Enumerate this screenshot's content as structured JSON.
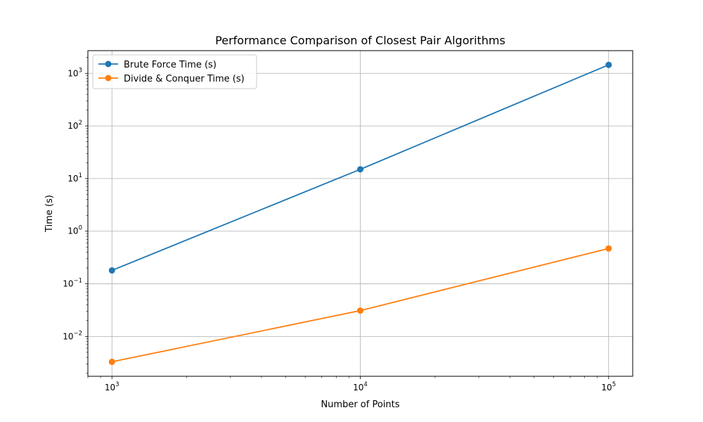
{
  "chart_data": {
    "type": "line",
    "title": "Performance Comparison of Closest Pair Algorithms",
    "xlabel": "Number of Points",
    "ylabel": "Time (s)",
    "x_scale": "log",
    "y_scale": "log",
    "xlim": [
      800,
      125000
    ],
    "ylim": [
      0.00175,
      2700
    ],
    "x": [
      1000,
      10000,
      100000
    ],
    "x_ticks": [
      {
        "value": 1000,
        "base": "10",
        "exp": "3"
      },
      {
        "value": 10000,
        "base": "10",
        "exp": "4"
      },
      {
        "value": 100000,
        "base": "10",
        "exp": "5"
      }
    ],
    "y_ticks": [
      {
        "value": 0.01,
        "base": "10",
        "exp": "−2"
      },
      {
        "value": 0.1,
        "base": "10",
        "exp": "−1"
      },
      {
        "value": 1,
        "base": "10",
        "exp": "0"
      },
      {
        "value": 10,
        "base": "10",
        "exp": "1"
      },
      {
        "value": 100,
        "base": "10",
        "exp": "2"
      },
      {
        "value": 1000,
        "base": "10",
        "exp": "3"
      }
    ],
    "grid": true,
    "legend_position": "top-left",
    "series": [
      {
        "name": "Brute Force Time (s)",
        "color": "#1f77b4",
        "values": [
          0.18,
          15,
          1450
        ]
      },
      {
        "name": "Divide & Conquer Time (s)",
        "color": "#ff7f0e",
        "values": [
          0.0033,
          0.031,
          0.47
        ]
      }
    ]
  }
}
